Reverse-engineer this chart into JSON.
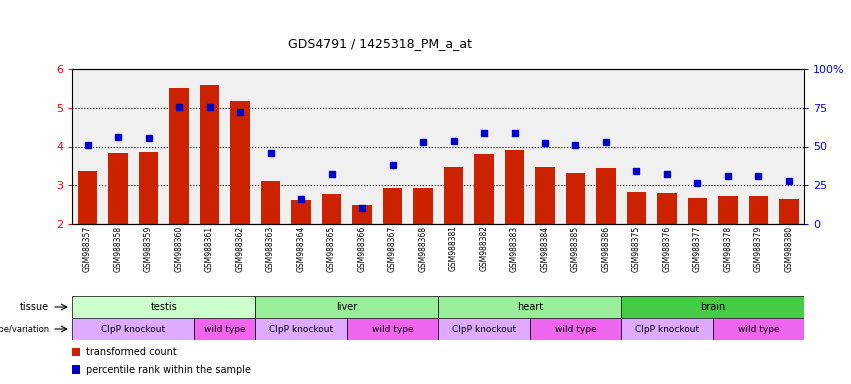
{
  "title": "GDS4791 / 1425318_PM_a_at",
  "samples": [
    "GSM988357",
    "GSM988358",
    "GSM988359",
    "GSM988360",
    "GSM988361",
    "GSM988362",
    "GSM988363",
    "GSM988364",
    "GSM988365",
    "GSM988366",
    "GSM988367",
    "GSM988368",
    "GSM988381",
    "GSM988382",
    "GSM988383",
    "GSM988384",
    "GSM988385",
    "GSM988386",
    "GSM988375",
    "GSM988376",
    "GSM988377",
    "GSM988378",
    "GSM988379",
    "GSM988380"
  ],
  "bar_values": [
    3.38,
    3.82,
    3.85,
    5.52,
    5.58,
    5.18,
    3.12,
    2.63,
    2.78,
    2.48,
    2.92,
    2.92,
    3.48,
    3.8,
    3.9,
    3.48,
    3.32,
    3.45,
    2.82,
    2.8,
    2.68,
    2.72,
    2.72,
    2.65
  ],
  "dot_values": [
    4.05,
    4.25,
    4.22,
    5.02,
    5.02,
    4.9,
    3.82,
    2.65,
    3.28,
    2.42,
    3.52,
    4.12,
    4.15,
    4.35,
    4.35,
    4.1,
    4.05,
    4.12,
    3.38,
    3.3,
    3.05,
    3.25,
    3.25,
    3.12
  ],
  "ylim": [
    2.0,
    6.0
  ],
  "yticks": [
    2,
    3,
    4,
    5,
    6
  ],
  "right_ytick_labels": [
    "0",
    "25",
    "50",
    "75",
    "100%"
  ],
  "bar_color": "#cc2200",
  "dot_color": "#0000cc",
  "bg_color": "#f0f0f0",
  "tissue_row": {
    "label": "tissue",
    "groups": [
      {
        "name": "testis",
        "start": 0,
        "end": 5,
        "color": "#ccffcc"
      },
      {
        "name": "liver",
        "start": 6,
        "end": 11,
        "color": "#99ee99"
      },
      {
        "name": "heart",
        "start": 12,
        "end": 17,
        "color": "#99ee99"
      },
      {
        "name": "brain",
        "start": 18,
        "end": 23,
        "color": "#44cc44"
      }
    ]
  },
  "genotype_row": {
    "label": "genotype/variation",
    "groups": [
      {
        "name": "ClpP knockout",
        "start": 0,
        "end": 3,
        "color": "#ddaaff"
      },
      {
        "name": "wild type",
        "start": 4,
        "end": 5,
        "color": "#ee66ee"
      },
      {
        "name": "ClpP knockout",
        "start": 6,
        "end": 8,
        "color": "#ddaaff"
      },
      {
        "name": "wild type",
        "start": 9,
        "end": 11,
        "color": "#ee66ee"
      },
      {
        "name": "ClpP knockout",
        "start": 12,
        "end": 14,
        "color": "#ddaaff"
      },
      {
        "name": "wild type",
        "start": 15,
        "end": 17,
        "color": "#ee66ee"
      },
      {
        "name": "ClpP knockout",
        "start": 18,
        "end": 20,
        "color": "#ddaaff"
      },
      {
        "name": "wild type",
        "start": 21,
        "end": 23,
        "color": "#ee66ee"
      }
    ]
  },
  "legend": [
    {
      "label": "transformed count",
      "color": "#cc2200"
    },
    {
      "label": "percentile rank within the sample",
      "color": "#0000cc"
    }
  ]
}
